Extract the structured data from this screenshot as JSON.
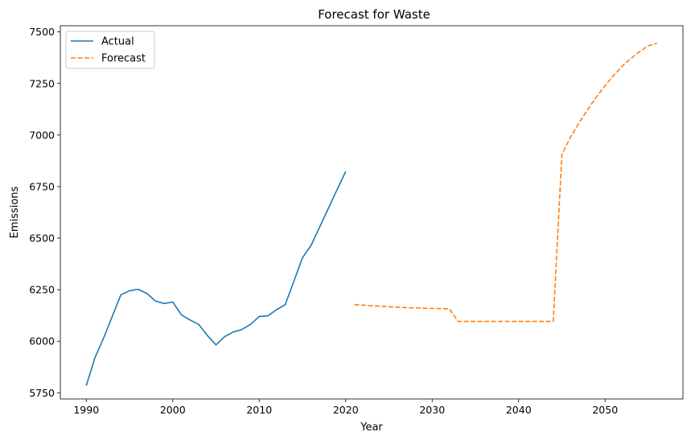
{
  "chart_data": {
    "type": "line",
    "title": "Forecast for Waste",
    "xlabel": "Year",
    "ylabel": "Emissions",
    "xlim": [
      1987,
      2059
    ],
    "ylim": [
      5720,
      7530
    ],
    "xticks": [
      1990,
      2000,
      2010,
      2020,
      2030,
      2040,
      2050
    ],
    "yticks": [
      5750,
      6000,
      6250,
      6500,
      6750,
      7000,
      7250,
      7500
    ],
    "grid": false,
    "legend": "top-left",
    "series": [
      {
        "name": "Actual",
        "color": "#1f77b4",
        "dash": "solid",
        "points": [
          [
            1990,
            5785
          ],
          [
            1991,
            5920
          ],
          [
            1992,
            6015
          ],
          [
            1993,
            6120
          ],
          [
            1994,
            6225
          ],
          [
            1995,
            6245
          ],
          [
            1996,
            6252
          ],
          [
            1997,
            6232
          ],
          [
            1998,
            6195
          ],
          [
            1999,
            6183
          ],
          [
            2000,
            6190
          ],
          [
            2001,
            6128
          ],
          [
            2002,
            6103
          ],
          [
            2003,
            6082
          ],
          [
            2004,
            6028
          ],
          [
            2005,
            5982
          ],
          [
            2006,
            6022
          ],
          [
            2007,
            6045
          ],
          [
            2008,
            6057
          ],
          [
            2009,
            6082
          ],
          [
            2010,
            6120
          ],
          [
            2011,
            6123
          ],
          [
            2012,
            6153
          ],
          [
            2013,
            6177
          ],
          [
            2014,
            6290
          ],
          [
            2015,
            6405
          ],
          [
            2016,
            6465
          ],
          [
            2017,
            6555
          ],
          [
            2018,
            6645
          ],
          [
            2019,
            6735
          ],
          [
            2020,
            6823
          ]
        ]
      },
      {
        "name": "Forecast",
        "color": "#ff7f0e",
        "dash": "dashed",
        "points": [
          [
            2021,
            6178
          ],
          [
            2022,
            6175
          ],
          [
            2023,
            6172
          ],
          [
            2024,
            6170
          ],
          [
            2025,
            6167
          ],
          [
            2026,
            6165
          ],
          [
            2027,
            6163
          ],
          [
            2028,
            6162
          ],
          [
            2029,
            6160
          ],
          [
            2030,
            6159
          ],
          [
            2031,
            6158
          ],
          [
            2032,
            6157
          ],
          [
            2033,
            6096
          ],
          [
            2034,
            6096
          ],
          [
            2035,
            6096
          ],
          [
            2036,
            6096
          ],
          [
            2037,
            6096
          ],
          [
            2038,
            6096
          ],
          [
            2039,
            6096
          ],
          [
            2040,
            6096
          ],
          [
            2041,
            6096
          ],
          [
            2042,
            6096
          ],
          [
            2043,
            6096
          ],
          [
            2044,
            6096
          ],
          [
            2045,
            6905
          ],
          [
            2046,
            6990
          ],
          [
            2047,
            7060
          ],
          [
            2048,
            7125
          ],
          [
            2049,
            7185
          ],
          [
            2050,
            7240
          ],
          [
            2051,
            7290
          ],
          [
            2052,
            7335
          ],
          [
            2053,
            7372
          ],
          [
            2054,
            7405
          ],
          [
            2055,
            7433
          ],
          [
            2056,
            7445
          ]
        ]
      }
    ]
  }
}
